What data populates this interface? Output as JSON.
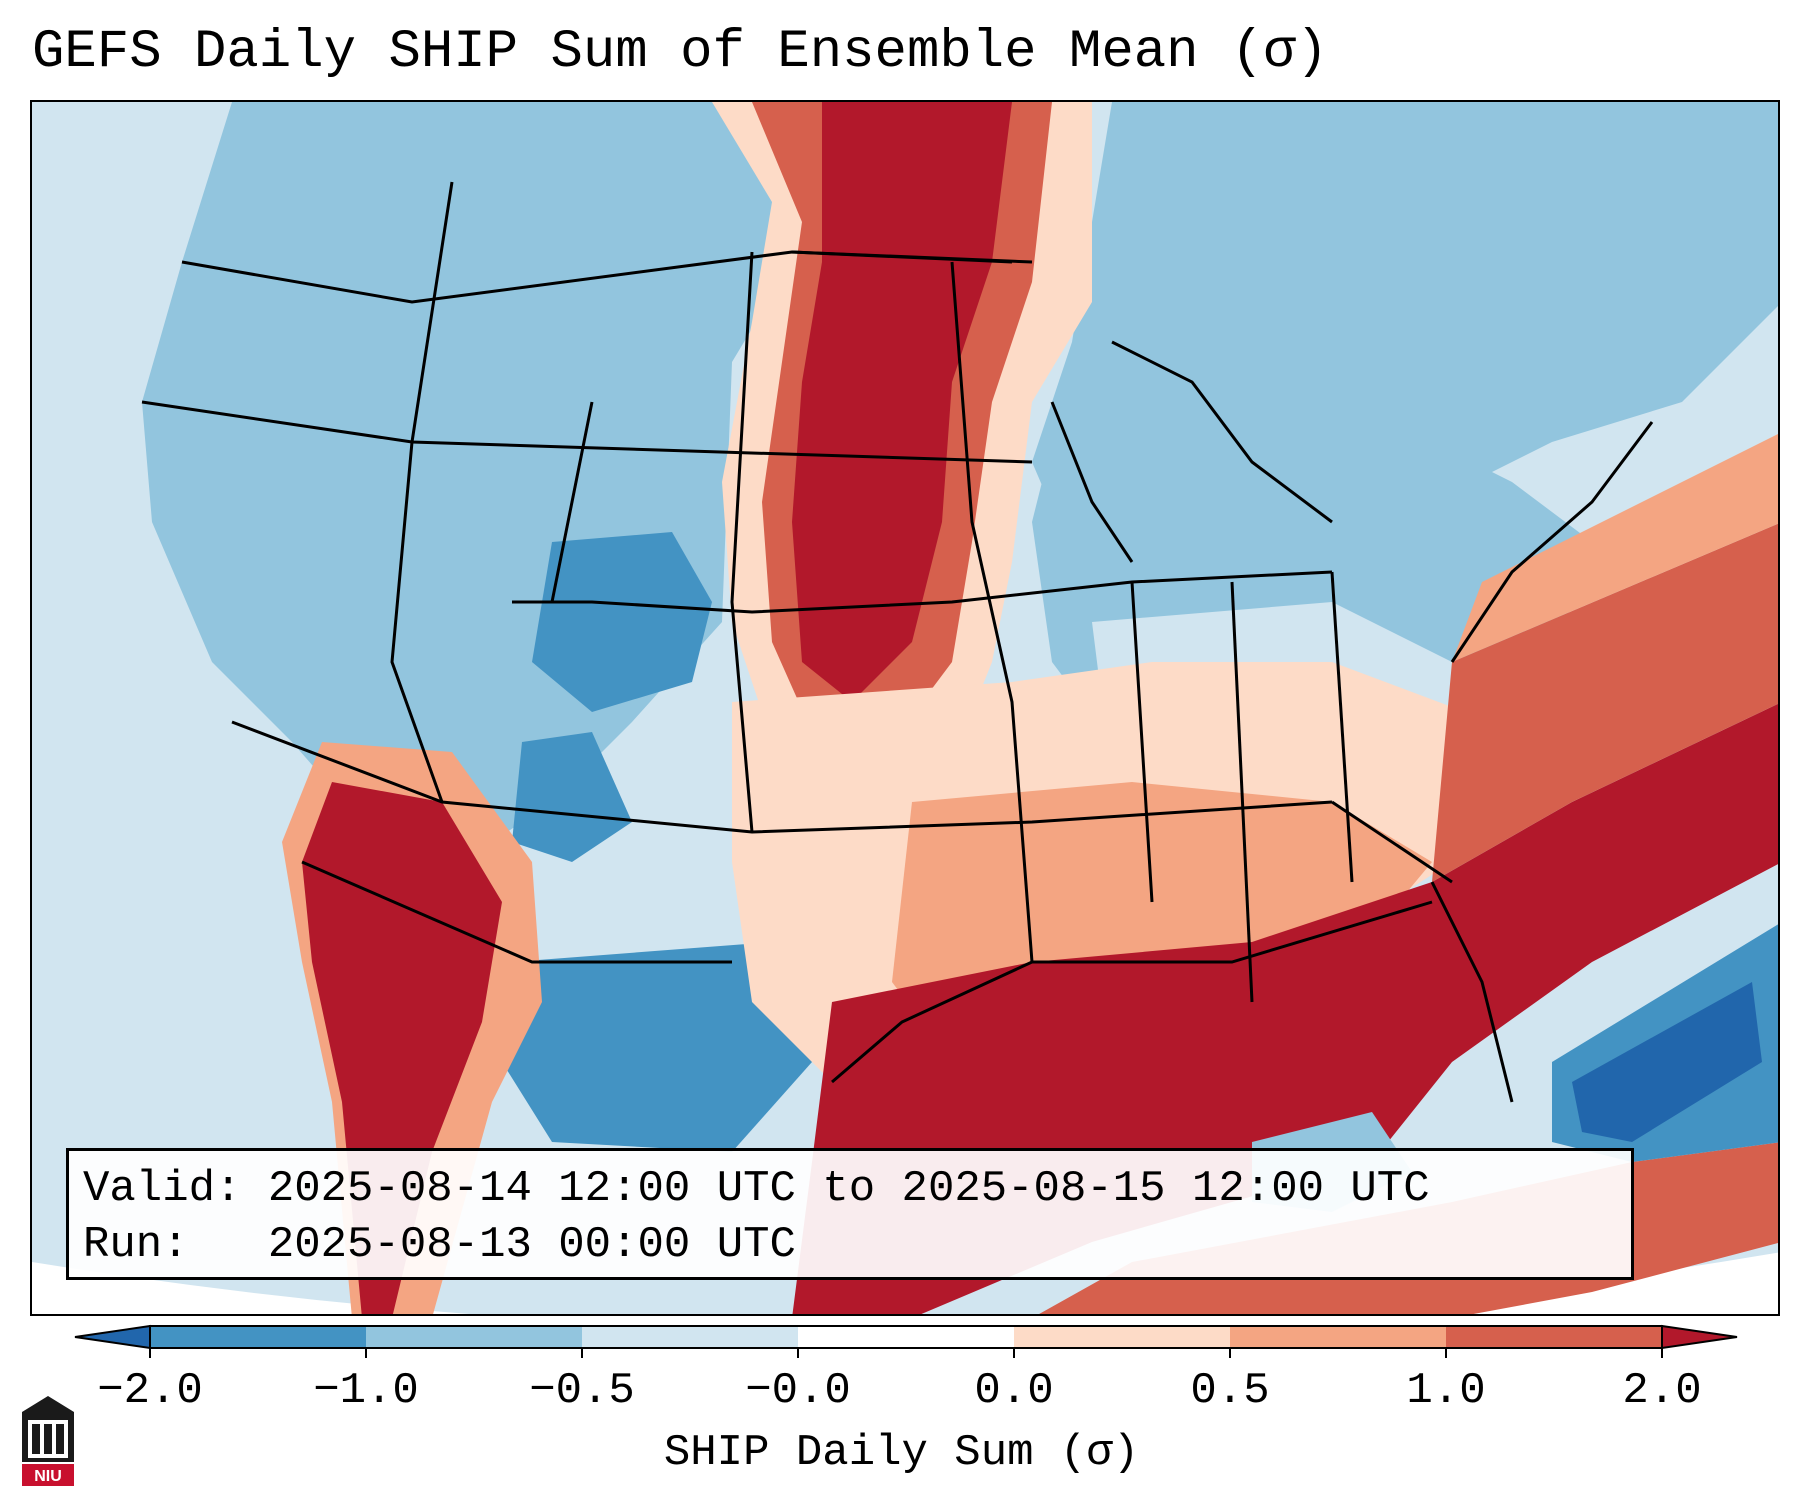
{
  "title": "GEFS Daily SHIP Sum of Ensemble Mean (σ)",
  "info": {
    "valid_line": "Valid: 2025-08-14 12:00 UTC to 2025-08-15 12:00 UTC",
    "run_line": "Run:   2025-08-13 00:00 UTC"
  },
  "colorbar": {
    "label": "SHIP Daily Sum (σ)",
    "ticks": [
      "−2.0",
      "−1.0",
      "−0.5",
      "−0.0",
      "0.0",
      "0.5",
      "1.0",
      "2.0"
    ],
    "colors": [
      "#2166ac",
      "#4393c3",
      "#92c5de",
      "#d1e5f0",
      "#fddbc7",
      "#f4a582",
      "#d6604d",
      "#b2182b"
    ],
    "extend": "both"
  },
  "logo": {
    "text": "NIU"
  },
  "map": {
    "projection": "lambert-conformal",
    "region": "Contiguous United States, southern Canada, northern Mexico, Gulf of Mexico, western Atlantic",
    "field_summary": [
      {
        "region": "Northern Plains (ND, SD, NE, MN)",
        "level": 2.0
      },
      {
        "region": "Gulf Coast, Gulf of Mexico, Florida, Southeast coast",
        "level": 2.0
      },
      {
        "region": "Desert Southwest / Baja California",
        "level": 2.0
      },
      {
        "region": "Western Atlantic offshore band",
        "level": 2.0
      },
      {
        "region": "Southern Plains / Lower Mississippi Valley",
        "level": 0.5
      },
      {
        "region": "Interior West (ID, MT, WY, UT, CO)",
        "level": -1.0
      },
      {
        "region": "Colorado / New Mexico / Texas pockets",
        "level": -2.0
      },
      {
        "region": "Bahamas / western Atlantic south",
        "level": -2.0
      },
      {
        "region": "Great Lakes and Northeast",
        "level": -1.0
      },
      {
        "region": "Pacific Ocean",
        "level": -0.0
      }
    ]
  }
}
